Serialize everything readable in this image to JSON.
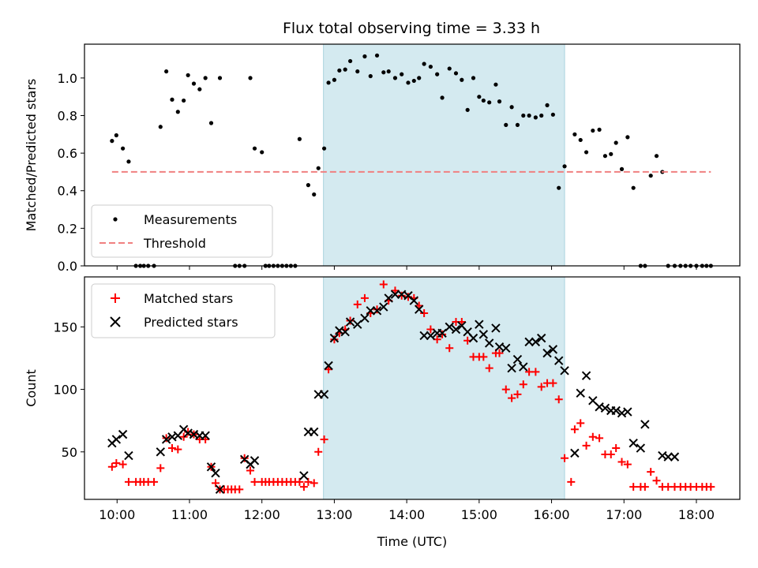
{
  "title": "Flux total observing time = 3.33 h",
  "chart_data": [
    {
      "type": "scatter",
      "ylabel": "Matched/Predicted stars",
      "xlim": [
        9.55,
        18.6
      ],
      "ylim": [
        0,
        1.18
      ],
      "yticks": [
        0.0,
        0.2,
        0.4,
        0.6,
        0.8,
        1.0
      ],
      "ytick_labels": [
        "0.0",
        "0.2",
        "0.4",
        "0.6",
        "0.8",
        "1.0"
      ],
      "shaded_region": {
        "x0": 12.85,
        "x1": 16.18,
        "color": "#d4eaf0"
      },
      "series": [
        {
          "name": "Measurements",
          "marker": "dot",
          "color": "#000000",
          "x": [
            9.93,
            9.99,
            10.08,
            10.16,
            10.26,
            10.32,
            10.37,
            10.43,
            10.51,
            10.6,
            10.68,
            10.76,
            10.84,
            10.92,
            10.98,
            11.06,
            11.14,
            11.22,
            11.3,
            11.42,
            11.63,
            11.69,
            11.76,
            11.84,
            11.9,
            12.0,
            12.05,
            12.1,
            12.16,
            12.22,
            12.28,
            12.34,
            12.4,
            12.46,
            12.52,
            12.64,
            12.72,
            12.78,
            12.86,
            12.92,
            13.0,
            13.07,
            13.15,
            13.22,
            13.32,
            13.42,
            13.5,
            13.59,
            13.68,
            13.75,
            13.84,
            13.93,
            14.02,
            14.1,
            14.17,
            14.24,
            14.33,
            14.42,
            14.49,
            14.59,
            14.68,
            14.76,
            14.84,
            14.92,
            15.0,
            15.06,
            15.14,
            15.23,
            15.28,
            15.37,
            15.45,
            15.53,
            15.61,
            15.69,
            15.78,
            15.86,
            15.94,
            16.02,
            16.1,
            16.18,
            16.32,
            16.4,
            16.48,
            16.57,
            16.66,
            16.74,
            16.82,
            16.89,
            16.97,
            17.05,
            17.13,
            17.23,
            17.29,
            17.37,
            17.45,
            17.53,
            17.61,
            17.7,
            17.78,
            17.85,
            17.92,
            18.0,
            18.08,
            18.14,
            18.2
          ],
          "y": [
            0.665,
            0.695,
            0.625,
            0.555,
            0.0,
            0.0,
            0.0,
            0.0,
            0.0,
            0.74,
            1.035,
            0.885,
            0.82,
            0.88,
            1.015,
            0.97,
            0.94,
            1.0,
            0.76,
            1.0,
            0.0,
            0.0,
            0.0,
            1.0,
            0.625,
            0.605,
            0.0,
            0.0,
            0.0,
            0.0,
            0.0,
            0.0,
            0.0,
            0.0,
            0.675,
            0.43,
            0.38,
            0.52,
            0.625,
            0.975,
            0.99,
            1.04,
            1.045,
            1.09,
            1.035,
            1.115,
            1.01,
            1.12,
            1.03,
            1.035,
            1.0,
            1.02,
            0.975,
            0.985,
            1.0,
            1.075,
            1.06,
            1.02,
            0.895,
            1.05,
            1.025,
            0.99,
            0.83,
            1.0,
            0.9,
            0.88,
            0.87,
            0.965,
            0.875,
            0.75,
            0.845,
            0.75,
            0.8,
            0.8,
            0.79,
            0.8,
            0.855,
            0.805,
            0.415,
            0.53,
            0.7,
            0.67,
            0.605,
            0.72,
            0.725,
            0.585,
            0.595,
            0.655,
            0.515,
            0.685,
            0.415,
            0.0,
            0.0,
            0.48,
            0.585,
            0.5,
            0.0,
            0.0,
            0.0,
            0.0,
            0.0,
            0.0,
            0.0,
            0.0,
            0.0
          ]
        },
        {
          "name": "Threshold",
          "marker": "dashed-line",
          "color": "#f08080",
          "x": [
            9.93,
            18.2
          ],
          "y": [
            0.5,
            0.5
          ]
        }
      ],
      "legend": {
        "placement": "lower-left"
      }
    },
    {
      "type": "scatter",
      "xlabel": "Time (UTC)",
      "ylabel": "Count",
      "xlim": [
        9.55,
        18.6
      ],
      "ylim": [
        12,
        190
      ],
      "yticks": [
        50,
        100,
        150
      ],
      "ytick_labels": [
        "50",
        "100",
        "150"
      ],
      "xticks": [
        10,
        11,
        12,
        13,
        14,
        15,
        16,
        17,
        18
      ],
      "xtick_labels": [
        "10:00",
        "11:00",
        "12:00",
        "13:00",
        "14:00",
        "15:00",
        "16:00",
        "17:00",
        "18:00"
      ],
      "shaded_region": {
        "x0": 12.85,
        "x1": 16.18,
        "color": "#d4eaf0"
      },
      "series": [
        {
          "name": "Matched stars",
          "marker": "plus",
          "color": "#ff0000",
          "x": [
            9.93,
            9.99,
            10.08,
            10.16,
            10.26,
            10.32,
            10.37,
            10.43,
            10.51,
            10.6,
            10.68,
            10.76,
            10.84,
            10.92,
            10.98,
            11.06,
            11.14,
            11.22,
            11.3,
            11.36,
            11.42,
            11.48,
            11.53,
            11.58,
            11.63,
            11.69,
            11.76,
            11.84,
            11.9,
            12.0,
            12.05,
            12.1,
            12.16,
            12.22,
            12.28,
            12.34,
            12.4,
            12.46,
            12.52,
            12.58,
            12.64,
            12.72,
            12.78,
            12.86,
            12.92,
            13.0,
            13.07,
            13.15,
            13.22,
            13.32,
            13.42,
            13.5,
            13.59,
            13.68,
            13.75,
            13.84,
            13.93,
            14.02,
            14.1,
            14.17,
            14.24,
            14.33,
            14.42,
            14.49,
            14.59,
            14.68,
            14.76,
            14.84,
            14.92,
            15.0,
            15.06,
            15.14,
            15.23,
            15.28,
            15.37,
            15.45,
            15.53,
            15.61,
            15.69,
            15.78,
            15.86,
            15.94,
            16.02,
            16.1,
            16.18,
            16.27,
            16.32,
            16.4,
            16.48,
            16.57,
            16.66,
            16.74,
            16.82,
            16.89,
            16.97,
            17.05,
            17.13,
            17.23,
            17.29,
            17.37,
            17.45,
            17.53,
            17.61,
            17.7,
            17.78,
            17.85,
            17.92,
            18.0,
            18.08,
            18.14,
            18.2
          ],
          "y": [
            38,
            41,
            40,
            26,
            26,
            26,
            26,
            26,
            26,
            37,
            61,
            53,
            52,
            62,
            66,
            64,
            60,
            60,
            38,
            25,
            20,
            20,
            20,
            20,
            20,
            20,
            45,
            35,
            26,
            26,
            26,
            26,
            26,
            26,
            26,
            26,
            26,
            26,
            26,
            22,
            26,
            25,
            50,
            60,
            116,
            140,
            145,
            148,
            155,
            168,
            173,
            161,
            164,
            184,
            171,
            179,
            175,
            174,
            173,
            167,
            161,
            148,
            140,
            144,
            133,
            154,
            154,
            139,
            126,
            126,
            126,
            117,
            129,
            129,
            100,
            93,
            96,
            104,
            114,
            114,
            102,
            105,
            105,
            92,
            45,
            26,
            68,
            73,
            55,
            62,
            61,
            48,
            48,
            53,
            42,
            40,
            22,
            22,
            22,
            34,
            27,
            22,
            22,
            22,
            22,
            22,
            22,
            22,
            22,
            22,
            22
          ]
        },
        {
          "name": "Predicted stars",
          "marker": "x",
          "color": "#000000",
          "x": [
            9.93,
            9.99,
            10.08,
            10.16,
            10.6,
            10.68,
            10.76,
            10.84,
            10.92,
            10.98,
            11.06,
            11.14,
            11.22,
            11.3,
            11.36,
            11.42,
            11.76,
            11.84,
            11.9,
            12.58,
            12.64,
            12.72,
            12.78,
            12.86,
            12.92,
            13.0,
            13.07,
            13.15,
            13.22,
            13.32,
            13.42,
            13.5,
            13.59,
            13.68,
            13.75,
            13.84,
            13.93,
            14.02,
            14.1,
            14.17,
            14.24,
            14.33,
            14.42,
            14.49,
            14.59,
            14.68,
            14.76,
            14.84,
            14.92,
            15.0,
            15.06,
            15.14,
            15.23,
            15.28,
            15.37,
            15.45,
            15.53,
            15.61,
            15.69,
            15.78,
            15.86,
            15.94,
            16.02,
            16.1,
            16.18,
            16.32,
            16.4,
            16.48,
            16.57,
            16.66,
            16.74,
            16.82,
            16.89,
            16.97,
            17.05,
            17.13,
            17.23,
            17.29,
            17.53,
            17.61,
            17.7
          ],
          "y": [
            57,
            60,
            64,
            47,
            50,
            60,
            62,
            63,
            68,
            65,
            64,
            63,
            63,
            38,
            33,
            20,
            44,
            40,
            43,
            31,
            66,
            66,
            96,
            96,
            119,
            141,
            147,
            146,
            154,
            152,
            157,
            163,
            163,
            166,
            173,
            176,
            176,
            175,
            171,
            164,
            143,
            143,
            145,
            145,
            150,
            148,
            151,
            146,
            141,
            152,
            144,
            137,
            149,
            134,
            133,
            117,
            124,
            118,
            138,
            138,
            141,
            129,
            132,
            123,
            115,
            49,
            97,
            111,
            91,
            86,
            85,
            83,
            83,
            81,
            82,
            57,
            53,
            72,
            47,
            46,
            46
          ]
        }
      ],
      "legend": {
        "placement": "upper-left"
      }
    }
  ]
}
